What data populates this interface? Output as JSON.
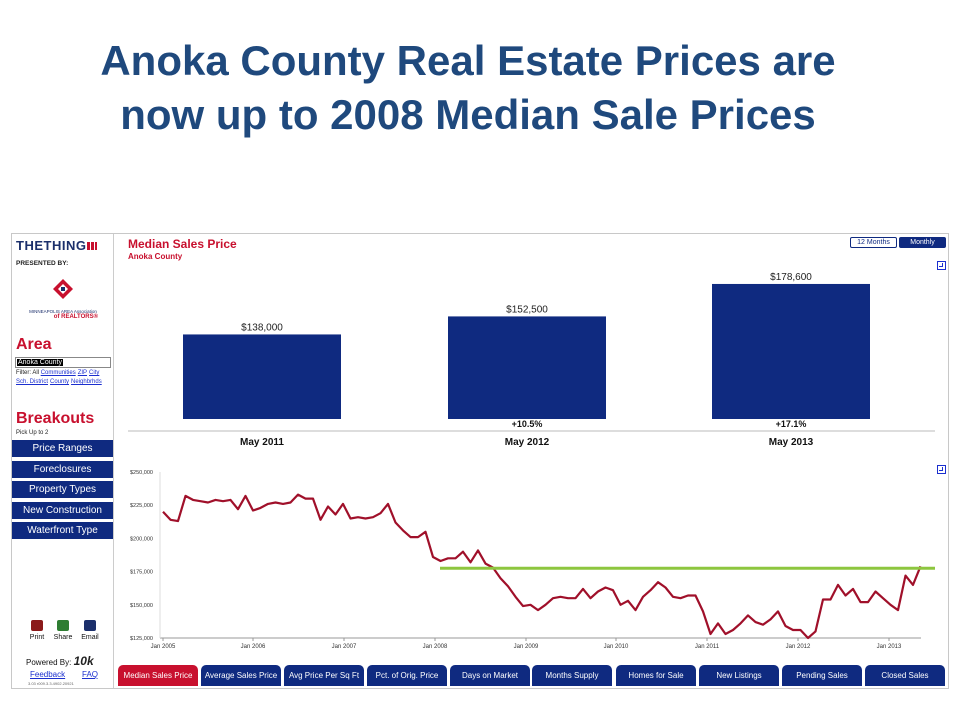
{
  "slide": {
    "title_line1": "Anoka County Real Estate Prices are",
    "title_line2": "now up to 2008 Median Sale Prices"
  },
  "sidebar": {
    "logo": "THETHING",
    "presented_by": "PRESENTED BY:",
    "sponsor_line1": "MINNEAPOLIS AREA Association",
    "sponsor_line2": "of REALTORS®",
    "area_heading": "Area",
    "area_value": "Anoka County",
    "filter_label": "Filter: All",
    "filter_links": [
      "Communities",
      "ZIP",
      "City",
      "Sch. District",
      "County",
      "Neighbrhds"
    ],
    "breakouts_heading": "Breakouts",
    "pick_hint": "Pick Up to 2",
    "breakout_buttons": [
      "Price Ranges",
      "Foreclosures",
      "Property Types",
      "New Construction",
      "Waterfront Type"
    ],
    "utilities": [
      "Print",
      "Share",
      "Email"
    ],
    "powered_by": "Powered By:",
    "powered_brand": "10k",
    "feedback": "Feedback",
    "faq": "FAQ",
    "version": "3.03 r009.3.3.4902.20921"
  },
  "header": {
    "title": "Median Sales Price",
    "subtitle": "Anoka County",
    "toggle_12": "12 Months",
    "toggle_monthly": "Monthly"
  },
  "colors": {
    "bar": "#0f2a80",
    "line": "#a0102a",
    "reference_line": "#8dc63f",
    "accent": "#c8102e",
    "title": "#1f497d"
  },
  "chart_data": [
    {
      "type": "bar",
      "categories": [
        "May 2011",
        "May 2012",
        "May 2013"
      ],
      "values": [
        138000,
        152500,
        178600
      ],
      "value_labels": [
        "$138,000",
        "$152,500",
        "$178,600"
      ],
      "change_labels": [
        "",
        "+10.5%",
        "+17.1%"
      ],
      "ylim": [
        70000,
        185000
      ]
    },
    {
      "type": "line",
      "x_ticks": [
        "Jan 2005",
        "Jan 2006",
        "Jan 2007",
        "Jan 2008",
        "Jan 2009",
        "Jan 2010",
        "Jan 2011",
        "Jan 2012",
        "Jan 2013"
      ],
      "y_ticks": [
        "$250,000",
        "$225,000",
        "$200,000",
        "$175,000",
        "$150,000",
        "$125,000"
      ],
      "ylim": [
        125000,
        250000
      ],
      "x_start": "Jan 2005",
      "series": [
        {
          "values": [
            220000,
            214000,
            213000,
            232000,
            229000,
            228000,
            227000,
            229000,
            228000,
            229000,
            222000,
            232000,
            221000,
            223000,
            226000,
            227000,
            226000,
            227000,
            233000,
            230000,
            230000,
            214000,
            224000,
            218000,
            226000,
            215000,
            216000,
            215000,
            216000,
            219000,
            226000,
            212000,
            206000,
            201000,
            201000,
            205000,
            186000,
            183000,
            185000,
            185000,
            190000,
            182000,
            191000,
            181000,
            178000,
            170000,
            164000,
            156000,
            149000,
            150000,
            146000,
            150000,
            155000,
            156000,
            155000,
            155000,
            162000,
            155000,
            160000,
            163000,
            161000,
            150000,
            153000,
            146000,
            156000,
            161000,
            167000,
            163000,
            156000,
            155000,
            157000,
            157000,
            145000,
            128000,
            136000,
            128000,
            131000,
            136000,
            142000,
            137000,
            135000,
            139000,
            145000,
            134000,
            131000,
            131000,
            125000,
            130000,
            154000,
            154000,
            165000,
            157000,
            162000,
            152000,
            152000,
            160000,
            155000,
            150000,
            146000,
            172000,
            165000,
            179000
          ]
        }
      ],
      "reference_value": 177500,
      "reference_from": "Jan 2008"
    }
  ],
  "tabs": [
    {
      "label": "Median Sales Price",
      "active": true
    },
    {
      "label": "Average Sales Price",
      "active": false
    },
    {
      "label": "Avg Price Per Sq Ft",
      "active": false
    },
    {
      "label": "Pct. of Orig. Price",
      "active": false
    },
    {
      "label": "Days on Market",
      "active": false
    },
    {
      "label": "Months Supply",
      "active": false
    },
    {
      "label": "Homes for Sale",
      "active": false
    },
    {
      "label": "New Listings",
      "active": false
    },
    {
      "label": "Pending Sales",
      "active": false
    },
    {
      "label": "Closed Sales",
      "active": false
    }
  ]
}
